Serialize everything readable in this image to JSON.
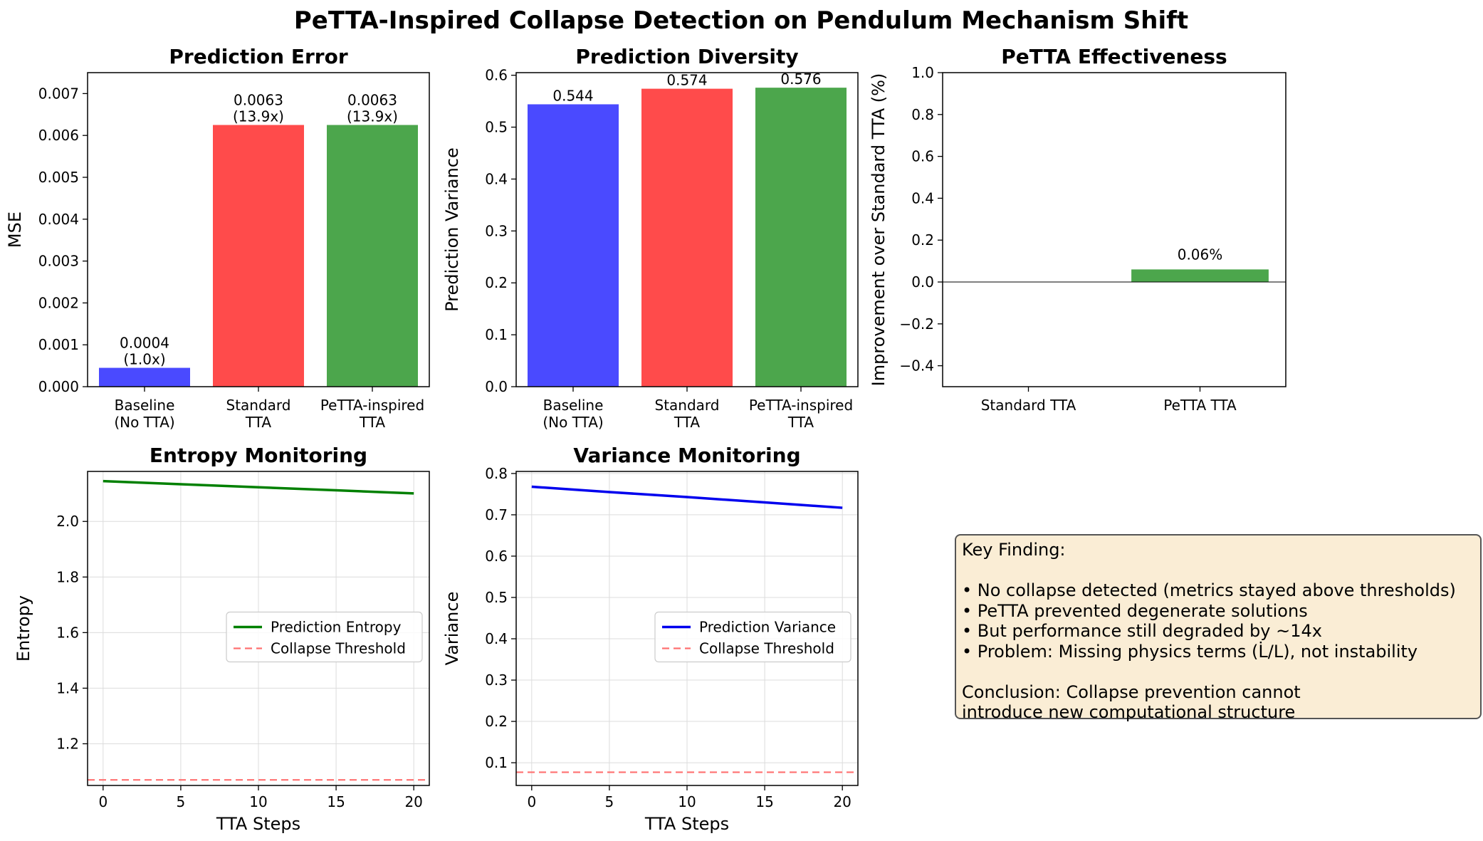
{
  "suptitle": "PeTTA-Inspired Collapse Detection on Pendulum Mechanism Shift",
  "colors": {
    "blue": "#4a4aff",
    "red": "#ff4b4b",
    "green": "#4ca64c",
    "green_line": "#008000",
    "blue_line": "#0000ee",
    "threshold": "#ff7070"
  },
  "key_finding": {
    "lines": [
      "Key Finding:",
      "",
      "• No collapse detected (metrics stayed above thresholds)",
      "• PeTTA prevented degenerate solutions",
      "• But performance still degraded by ~14x",
      "• Problem: Missing physics terms (L̇/L), not instability",
      "",
      "Conclusion: Collapse prevention cannot",
      "introduce new computational structure"
    ]
  },
  "chart_data": [
    {
      "id": "error",
      "type": "bar",
      "title": "Prediction Error",
      "ylabel": "MSE",
      "xlabel": "",
      "categories": [
        [
          "Baseline",
          "(No TTA)"
        ],
        [
          "Standard",
          "TTA"
        ],
        [
          "PeTTA-inspired",
          "TTA"
        ]
      ],
      "values": [
        0.00045,
        0.00625,
        0.00625
      ],
      "bar_labels": [
        [
          "0.0004",
          "(1.0x)"
        ],
        [
          "0.0063",
          "(13.9x)"
        ],
        [
          "0.0063",
          "(13.9x)"
        ]
      ],
      "colors": [
        "#4a4aff",
        "#ff4b4b",
        "#4ca64c"
      ],
      "ylim": [
        0,
        0.0075
      ],
      "yticks": [
        0,
        0.001,
        0.002,
        0.003,
        0.004,
        0.005,
        0.006,
        0.007
      ],
      "ytick_labels": [
        "0.000",
        "0.001",
        "0.002",
        "0.003",
        "0.004",
        "0.005",
        "0.006",
        "0.007"
      ],
      "grid": false
    },
    {
      "id": "diversity",
      "type": "bar",
      "title": "Prediction Diversity",
      "ylabel": "Prediction Variance",
      "xlabel": "",
      "categories": [
        [
          "Baseline",
          "(No TTA)"
        ],
        [
          "Standard",
          "TTA"
        ],
        [
          "PeTTA-inspired",
          "TTA"
        ]
      ],
      "values": [
        0.544,
        0.574,
        0.576
      ],
      "bar_labels": [
        [
          "0.544"
        ],
        [
          "0.574"
        ],
        [
          "0.576"
        ]
      ],
      "colors": [
        "#4a4aff",
        "#ff4b4b",
        "#4ca64c"
      ],
      "ylim": [
        0,
        0.605
      ],
      "yticks": [
        0,
        0.1,
        0.2,
        0.3,
        0.4,
        0.5,
        0.6
      ],
      "ytick_labels": [
        "0.0",
        "0.1",
        "0.2",
        "0.3",
        "0.4",
        "0.5",
        "0.6"
      ],
      "grid": false
    },
    {
      "id": "effectiveness",
      "type": "bar",
      "title": "PeTTA Effectiveness",
      "ylabel": "Improvement over Standard TTA (%)",
      "xlabel": "",
      "categories": [
        [
          "Standard TTA"
        ],
        [
          "PeTTA TTA"
        ]
      ],
      "values": [
        0,
        0.06
      ],
      "bar_labels": [
        [],
        [
          "0.06%"
        ]
      ],
      "colors": [
        "#4ca64c",
        "#4ca64c"
      ],
      "ylim": [
        -0.5,
        1.0
      ],
      "yticks": [
        -0.4,
        -0.2,
        0.0,
        0.2,
        0.4,
        0.6,
        0.8,
        1.0
      ],
      "ytick_labels": [
        "−0.4",
        "−0.2",
        "0.0",
        "0.2",
        "0.4",
        "0.6",
        "0.8",
        "1.0"
      ],
      "zero_line": true,
      "grid": false
    },
    {
      "id": "entropy",
      "type": "line",
      "title": "Entropy Monitoring",
      "xlabel": "TTA Steps",
      "ylabel": "Entropy",
      "xlim": [
        -1,
        21
      ],
      "ylim": [
        1.05,
        2.18
      ],
      "xticks": [
        0,
        5,
        10,
        15,
        20
      ],
      "yticks": [
        1.2,
        1.4,
        1.6,
        1.8,
        2.0
      ],
      "ytick_labels": [
        "1.2",
        "1.4",
        "1.6",
        "1.8",
        "2.0"
      ],
      "series": [
        {
          "name": "Prediction Entropy",
          "x": [
            0,
            5,
            10,
            15,
            20
          ],
          "y": [
            2.145,
            2.134,
            2.123,
            2.112,
            2.101
          ],
          "color": "#008000",
          "dash": false
        },
        {
          "name": "Collapse Threshold",
          "x": [
            -1,
            21
          ],
          "y": [
            1.07,
            1.07
          ],
          "color": "#ff7070",
          "dash": true
        }
      ],
      "legend": "center-right",
      "grid": true
    },
    {
      "id": "variance",
      "type": "line",
      "title": "Variance Monitoring",
      "xlabel": "TTA Steps",
      "ylabel": "Variance",
      "xlim": [
        -1,
        21
      ],
      "ylim": [
        0.045,
        0.805
      ],
      "xticks": [
        0,
        5,
        10,
        15,
        20
      ],
      "yticks": [
        0.1,
        0.2,
        0.3,
        0.4,
        0.5,
        0.6,
        0.7,
        0.8
      ],
      "ytick_labels": [
        "0.1",
        "0.2",
        "0.3",
        "0.4",
        "0.5",
        "0.6",
        "0.7",
        "0.8"
      ],
      "series": [
        {
          "name": "Prediction Variance",
          "x": [
            0,
            5,
            10,
            15,
            20
          ],
          "y": [
            0.768,
            0.755,
            0.743,
            0.73,
            0.717
          ],
          "color": "#0000ee",
          "dash": false
        },
        {
          "name": "Collapse Threshold",
          "x": [
            -1,
            21
          ],
          "y": [
            0.077,
            0.077
          ],
          "color": "#ff7070",
          "dash": true
        }
      ],
      "legend": "center-right",
      "grid": true
    }
  ]
}
